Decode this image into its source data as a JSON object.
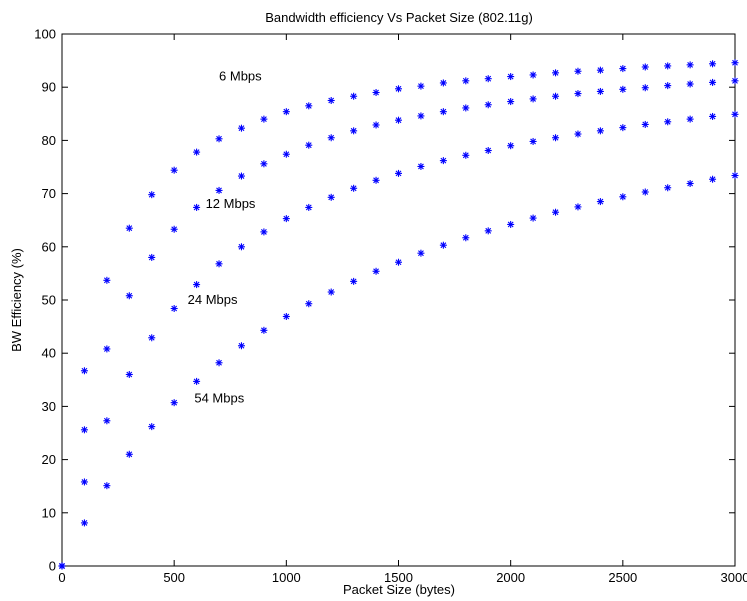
{
  "chart_data": {
    "type": "scatter",
    "title": "Bandwidth efficiency Vs Packet Size (802.11g)",
    "xlabel": "Packet Size (bytes)",
    "ylabel": "BW Efficiency (%)",
    "xlim": [
      0,
      3000
    ],
    "ylim": [
      0,
      100
    ],
    "xticks": [
      0,
      500,
      1000,
      1500,
      2000,
      2500,
      3000
    ],
    "yticks": [
      0,
      10,
      20,
      30,
      40,
      50,
      60,
      70,
      80,
      90,
      100
    ],
    "grid": false,
    "legend": "none",
    "marker": "asterisk",
    "marker_color": "#0000ff",
    "x": [
      0,
      100,
      200,
      300,
      400,
      500,
      600,
      700,
      800,
      900,
      1000,
      1100,
      1200,
      1300,
      1400,
      1500,
      1600,
      1700,
      1800,
      1900,
      2000,
      2100,
      2200,
      2300,
      2400,
      2500,
      2600,
      2700,
      2800,
      2900,
      3000
    ],
    "series": [
      {
        "name": "6 Mbps",
        "label_at": [
          700,
          92
        ],
        "values": [
          0,
          36.7,
          53.7,
          63.5,
          69.8,
          74.4,
          77.8,
          80.3,
          82.3,
          84.0,
          85.4,
          86.5,
          87.5,
          88.3,
          89.0,
          89.7,
          90.2,
          90.8,
          91.2,
          91.6,
          92.0,
          92.3,
          92.7,
          93.0,
          93.2,
          93.5,
          93.8,
          94.0,
          94.2,
          94.4,
          94.6
        ]
      },
      {
        "name": "12 Mbps",
        "label_at": [
          640,
          68
        ],
        "values": [
          0,
          25.6,
          40.8,
          50.8,
          58.0,
          63.3,
          67.4,
          70.6,
          73.3,
          75.6,
          77.4,
          79.1,
          80.5,
          81.8,
          82.9,
          83.8,
          84.6,
          85.4,
          86.1,
          86.7,
          87.3,
          87.8,
          88.3,
          88.8,
          89.2,
          89.6,
          89.9,
          90.3,
          90.6,
          90.9,
          91.2
        ]
      },
      {
        "name": "24 Mbps",
        "label_at": [
          560,
          50
        ],
        "values": [
          0,
          15.8,
          27.3,
          36.0,
          42.9,
          48.4,
          52.9,
          56.8,
          60.0,
          62.8,
          65.3,
          67.4,
          69.3,
          71.0,
          72.5,
          73.8,
          75.1,
          76.2,
          77.2,
          78.1,
          79.0,
          79.8,
          80.5,
          81.2,
          81.8,
          82.4,
          83.0,
          83.5,
          84.0,
          84.5,
          84.9
        ]
      },
      {
        "name": "54 Mbps",
        "label_at": [
          590,
          31.5
        ],
        "values": [
          0,
          8.1,
          15.1,
          21.0,
          26.2,
          30.7,
          34.7,
          38.2,
          41.4,
          44.3,
          46.9,
          49.3,
          51.5,
          53.5,
          55.4,
          57.1,
          58.8,
          60.3,
          61.7,
          63.0,
          64.2,
          65.4,
          66.5,
          67.5,
          68.5,
          69.4,
          70.3,
          71.1,
          71.9,
          72.7,
          73.4
        ]
      }
    ]
  }
}
